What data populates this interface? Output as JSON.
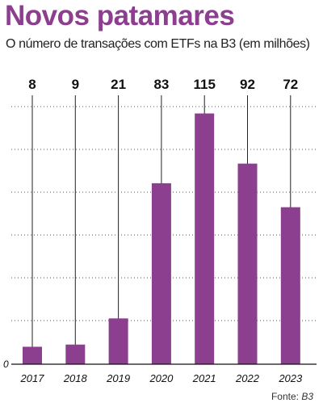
{
  "header": {
    "title": "Novos patamares",
    "subtitle": "O número de transações com ETFs na B3 (em milhões)"
  },
  "footer": {
    "source_label": "Fonte:",
    "source_name": "B3"
  },
  "colors": {
    "bar": "#8b3f8e",
    "title": "#8b3f8e",
    "gridline": "#555555",
    "axis": "#111111"
  },
  "chart_data": {
    "type": "bar",
    "title": "Novos patamares",
    "subtitle": "O número de transações com ETFs na B3 (em milhões)",
    "categories": [
      "2017",
      "2018",
      "2019",
      "2020",
      "2021",
      "2022",
      "2023"
    ],
    "values": [
      8,
      9,
      21,
      83,
      115,
      92,
      72
    ],
    "value_labels": [
      "8",
      "9",
      "21",
      "83",
      "115",
      "92",
      "72"
    ],
    "xlabel": "",
    "ylabel": "",
    "y_tick_labels": [
      "0"
    ],
    "ylim": [
      0,
      126
    ],
    "grid": true,
    "gridline_style": "dotted horizontal",
    "legend": "none",
    "source": "Fonte: B3"
  }
}
